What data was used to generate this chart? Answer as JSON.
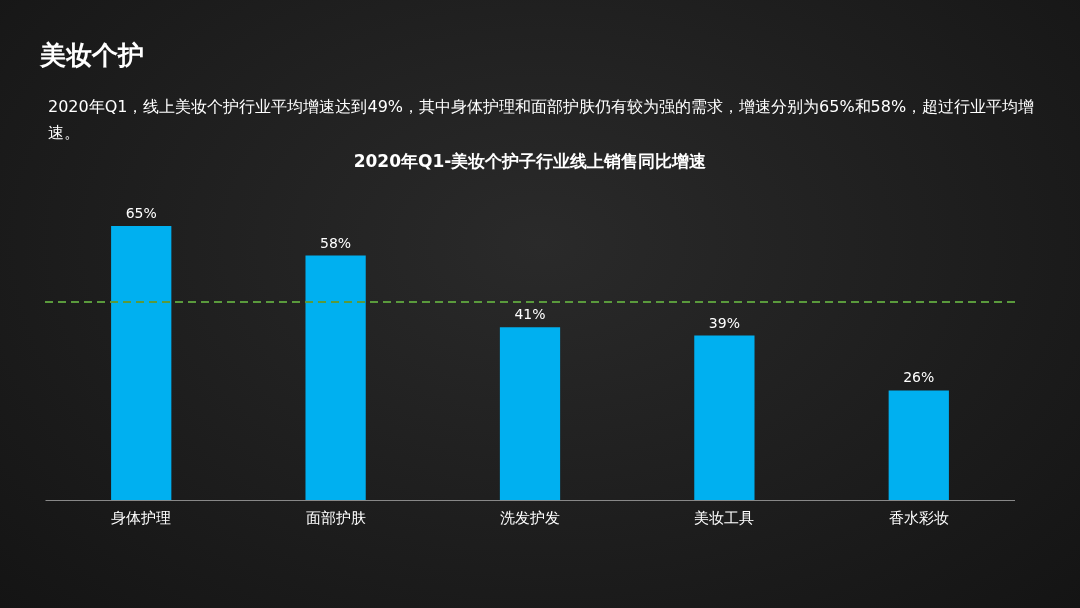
{
  "chart_data": {
    "type": "bar",
    "title": "美妆个护",
    "subtitle": "2020年Q1，线上美妆个护行业平均增速达到49%，其中身体护理和面部护肤仍有较为强的需求，增速分别为65%和58%，超过行业平均增速。",
    "annotations": [
      "2020年Q1-美妆个护子行业线上销售同比增速"
    ],
    "categories": [
      "身体护理",
      "面部护肤",
      "洗发护发",
      "美妆工具",
      "香水彩妆"
    ],
    "values": [
      65,
      58,
      41,
      39,
      26
    ],
    "color": "#00b0f0",
    "value_labels": [
      "65%",
      "58%",
      "41%",
      "39%",
      "26%"
    ],
    "ref_lines": [
      {
        "axis": "y",
        "value": 47,
        "color": "#5a9a3c",
        "line_style": "dashed"
      }
    ],
    "tick_labels": "x"
  }
}
